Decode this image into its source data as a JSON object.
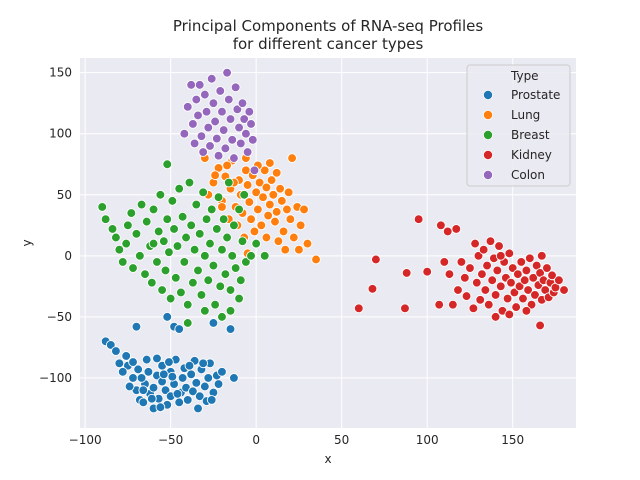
{
  "chart_data": {
    "type": "scatter",
    "title": [
      "Principal Components of RNA-seq Profiles",
      "for different cancer types"
    ],
    "xlabel": "x",
    "ylabel": "y",
    "xlim": [
      -103,
      187
    ],
    "ylim": [
      -141,
      162
    ],
    "xticks": [
      -100,
      -50,
      0,
      50,
      100,
      150
    ],
    "yticks": [
      -100,
      -50,
      0,
      50,
      100,
      150
    ],
    "xtick_labels": [
      "−100",
      "−50",
      "0",
      "50",
      "100",
      "150"
    ],
    "ytick_labels": [
      "−100",
      "−50",
      "0",
      "50",
      "100",
      "150"
    ],
    "grid": true,
    "background": "#eaeaf2",
    "legend": {
      "title": "Type",
      "placement": "top-right"
    },
    "series": [
      {
        "name": "Prostate",
        "color": "#1f77b4",
        "points": [
          [
            -75,
            -90
          ],
          [
            -72,
            -100
          ],
          [
            -70,
            -110
          ],
          [
            -68,
            -118
          ],
          [
            -66,
            -120
          ],
          [
            -65,
            -105
          ],
          [
            -63,
            -95
          ],
          [
            -62,
            -113
          ],
          [
            -60,
            -108
          ],
          [
            -60,
            -125
          ],
          [
            -58,
            -98
          ],
          [
            -57,
            -117
          ],
          [
            -55,
            -103
          ],
          [
            -55,
            -90
          ],
          [
            -53,
            -110
          ],
          [
            -52,
            -122
          ],
          [
            -50,
            -95
          ],
          [
            -50,
            -115
          ],
          [
            -48,
            -105
          ],
          [
            -47,
            -85
          ],
          [
            -45,
            -120
          ],
          [
            -44,
            -112
          ],
          [
            -43,
            -100
          ],
          [
            -42,
            -92
          ],
          [
            -41,
            -108
          ],
          [
            -40,
            -118
          ],
          [
            -38,
            -97
          ],
          [
            -37,
            -111
          ],
          [
            -36,
            -86
          ],
          [
            -35,
            -104
          ],
          [
            -33,
            -115
          ],
          [
            -32,
            -93
          ],
          [
            -30,
            -107
          ],
          [
            -29,
            -119
          ],
          [
            -28,
            -100
          ],
          [
            -27,
            -88
          ],
          [
            -25,
            -112
          ],
          [
            -23,
            -98
          ],
          [
            -22,
            -105
          ],
          [
            -20,
            -95
          ],
          [
            -67,
            -100
          ],
          [
            -64,
            -85
          ],
          [
            -61,
            -117
          ],
          [
            -58,
            -84
          ],
          [
            -56,
            -124
          ],
          [
            -54,
            -97
          ],
          [
            -51,
            -87
          ],
          [
            -49,
            -99
          ],
          [
            -46,
            -113
          ],
          [
            -39,
            -90
          ],
          [
            -34,
            -125
          ],
          [
            -31,
            -88
          ],
          [
            -26,
            -118
          ],
          [
            -70,
            -58
          ],
          [
            -52,
            -50
          ],
          [
            -48,
            -58
          ],
          [
            -45,
            -60
          ],
          [
            -25,
            -55
          ],
          [
            -15,
            -60
          ],
          [
            -13,
            -100
          ],
          [
            -88,
            -70
          ],
          [
            -85,
            -73
          ],
          [
            -82,
            -78
          ],
          [
            -80,
            -88
          ],
          [
            -78,
            -95
          ],
          [
            -76,
            -82
          ],
          [
            -74,
            -107
          ],
          [
            -72,
            -87
          ],
          [
            -69,
            -93
          ],
          [
            -66,
            -110
          ]
        ]
      },
      {
        "name": "Lung",
        "color": "#ff7f0e",
        "points": [
          [
            -30,
            80
          ],
          [
            -25,
            60
          ],
          [
            -22,
            72
          ],
          [
            -20,
            45
          ],
          [
            -18,
            65
          ],
          [
            -15,
            55
          ],
          [
            -14,
            78
          ],
          [
            -12,
            40
          ],
          [
            -10,
            62
          ],
          [
            -9,
            50
          ],
          [
            -8,
            35
          ],
          [
            -6,
            70
          ],
          [
            -5,
            58
          ],
          [
            -4,
            44
          ],
          [
            -3,
            30
          ],
          [
            -2,
            66
          ],
          [
            0,
            52
          ],
          [
            1,
            38
          ],
          [
            2,
            60
          ],
          [
            3,
            25
          ],
          [
            4,
            48
          ],
          [
            5,
            70
          ],
          [
            6,
            56
          ],
          [
            7,
            33
          ],
          [
            8,
            42
          ],
          [
            9,
            62
          ],
          [
            10,
            50
          ],
          [
            11,
            28
          ],
          [
            12,
            36
          ],
          [
            14,
            55
          ],
          [
            15,
            45
          ],
          [
            16,
            20
          ],
          [
            18,
            38
          ],
          [
            19,
            52
          ],
          [
            20,
            30
          ],
          [
            21,
            80
          ],
          [
            22,
            15
          ],
          [
            24,
            40
          ],
          [
            26,
            25
          ],
          [
            28,
            38
          ],
          [
            30,
            10
          ],
          [
            35,
            -3
          ],
          [
            -5,
            2
          ],
          [
            -28,
            50
          ],
          [
            -20,
            40
          ],
          [
            -16,
            30
          ],
          [
            -11,
            25
          ],
          [
            -7,
            15
          ],
          [
            -1,
            20
          ],
          [
            6,
            15
          ],
          [
            13,
            12
          ],
          [
            17,
            5
          ],
          [
            25,
            5
          ],
          [
            -24,
            66
          ],
          [
            -17,
            74
          ],
          [
            -13,
            60
          ],
          [
            -6,
            80
          ],
          [
            1,
            74
          ],
          [
            8,
            76
          ],
          [
            12,
            68
          ]
        ]
      },
      {
        "name": "Breast",
        "color": "#2ca02c",
        "points": [
          [
            -90,
            40
          ],
          [
            -88,
            30
          ],
          [
            -84,
            22
          ],
          [
            -82,
            15
          ],
          [
            -80,
            5
          ],
          [
            -78,
            -5
          ],
          [
            -76,
            10
          ],
          [
            -75,
            25
          ],
          [
            -73,
            35
          ],
          [
            -72,
            -10
          ],
          [
            -70,
            18
          ],
          [
            -68,
            0
          ],
          [
            -67,
            42
          ],
          [
            -65,
            -15
          ],
          [
            -64,
            28
          ],
          [
            -62,
            8
          ],
          [
            -61,
            -22
          ],
          [
            -60,
            38
          ],
          [
            -58,
            -5
          ],
          [
            -57,
            20
          ],
          [
            -56,
            50
          ],
          [
            -55,
            -28
          ],
          [
            -54,
            12
          ],
          [
            -53,
            -12
          ],
          [
            -52,
            30
          ],
          [
            -51,
            3
          ],
          [
            -50,
            -35
          ],
          [
            -49,
            45
          ],
          [
            -48,
            22
          ],
          [
            -47,
            -18
          ],
          [
            -46,
            8
          ],
          [
            -45,
            55
          ],
          [
            -44,
            -30
          ],
          [
            -43,
            32
          ],
          [
            -42,
            -5
          ],
          [
            -41,
            15
          ],
          [
            -40,
            -40
          ],
          [
            -39,
            60
          ],
          [
            -38,
            25
          ],
          [
            -37,
            -22
          ],
          [
            -36,
            5
          ],
          [
            -35,
            42
          ],
          [
            -34,
            -12
          ],
          [
            -33,
            18
          ],
          [
            -32,
            -32
          ],
          [
            -31,
            52
          ],
          [
            -30,
            0
          ],
          [
            -29,
            30
          ],
          [
            -28,
            -20
          ],
          [
            -27,
            10
          ],
          [
            -26,
            38
          ],
          [
            -25,
            -8
          ],
          [
            -24,
            -40
          ],
          [
            -23,
            22
          ],
          [
            -22,
            48
          ],
          [
            -21,
            -25
          ],
          [
            -20,
            5
          ],
          [
            -19,
            30
          ],
          [
            -18,
            -15
          ],
          [
            -17,
            15
          ],
          [
            -16,
            60
          ],
          [
            -15,
            -28
          ],
          [
            -14,
            0
          ],
          [
            -13,
            25
          ],
          [
            -12,
            -10
          ],
          [
            -10,
            38
          ],
          [
            -9,
            -20
          ],
          [
            -8,
            12
          ],
          [
            -7,
            50
          ],
          [
            -6,
            -5
          ],
          [
            -15,
            -45
          ],
          [
            -10,
            -35
          ],
          [
            -3,
            0
          ],
          [
            0,
            10
          ],
          [
            5,
            0
          ],
          [
            -40,
            -55
          ],
          [
            -30,
            -45
          ],
          [
            -20,
            -50
          ],
          [
            -52,
            75
          ],
          [
            -60,
            10
          ]
        ]
      },
      {
        "name": "Kidney",
        "color": "#d62728",
        "points": [
          [
            60,
            -43
          ],
          [
            68,
            -27
          ],
          [
            70,
            -3
          ],
          [
            87,
            -43
          ],
          [
            88,
            -14
          ],
          [
            95,
            30
          ],
          [
            100,
            -13
          ],
          [
            107,
            -40
          ],
          [
            108,
            25
          ],
          [
            110,
            -5
          ],
          [
            112,
            20
          ],
          [
            113,
            -15
          ],
          [
            115,
            -40
          ],
          [
            117,
            22
          ],
          [
            118,
            -28
          ],
          [
            120,
            -5
          ],
          [
            122,
            -18
          ],
          [
            123,
            -33
          ],
          [
            125,
            -10
          ],
          [
            127,
            -43
          ],
          [
            128,
            10
          ],
          [
            129,
            -22
          ],
          [
            130,
            0
          ],
          [
            131,
            -36
          ],
          [
            132,
            -15
          ],
          [
            133,
            5
          ],
          [
            134,
            -28
          ],
          [
            135,
            -8
          ],
          [
            136,
            -40
          ],
          [
            137,
            12
          ],
          [
            138,
            -20
          ],
          [
            139,
            -2
          ],
          [
            140,
            -32
          ],
          [
            141,
            -12
          ],
          [
            142,
            8
          ],
          [
            143,
            -25
          ],
          [
            144,
            -45
          ],
          [
            145,
            -5
          ],
          [
            146,
            -18
          ],
          [
            147,
            -35
          ],
          [
            148,
            2
          ],
          [
            149,
            -22
          ],
          [
            150,
            -10
          ],
          [
            151,
            -30
          ],
          [
            152,
            -42
          ],
          [
            153,
            -15
          ],
          [
            154,
            -25
          ],
          [
            155,
            -5
          ],
          [
            156,
            -35
          ],
          [
            157,
            -20
          ],
          [
            158,
            -12
          ],
          [
            159,
            -28
          ],
          [
            160,
            -2
          ],
          [
            161,
            -40
          ],
          [
            162,
            -18
          ],
          [
            163,
            -32
          ],
          [
            164,
            -8
          ],
          [
            165,
            -24
          ],
          [
            166,
            -14
          ],
          [
            167,
            -36
          ],
          [
            168,
            -20
          ],
          [
            169,
            -28
          ],
          [
            170,
            -10
          ],
          [
            171,
            -34
          ],
          [
            172,
            -22
          ],
          [
            173,
            -16
          ],
          [
            174,
            -30
          ],
          [
            175,
            -26
          ],
          [
            177,
            -20
          ],
          [
            180,
            -28
          ],
          [
            140,
            -50
          ],
          [
            166,
            -57
          ],
          [
            148,
            -48
          ],
          [
            167,
            0
          ],
          [
            143,
            0
          ],
          [
            158,
            -45
          ]
        ]
      },
      {
        "name": "Colon",
        "color": "#9467bd",
        "points": [
          [
            -42,
            100
          ],
          [
            -40,
            122
          ],
          [
            -38,
            140
          ],
          [
            -37,
            108
          ],
          [
            -36,
            92
          ],
          [
            -35,
            128
          ],
          [
            -34,
            115
          ],
          [
            -33,
            140
          ],
          [
            -32,
            98
          ],
          [
            -31,
            85
          ],
          [
            -30,
            132
          ],
          [
            -29,
            118
          ],
          [
            -28,
            105
          ],
          [
            -27,
            90
          ],
          [
            -26,
            145
          ],
          [
            -25,
            125
          ],
          [
            -24,
            110
          ],
          [
            -23,
            96
          ],
          [
            -22,
            82
          ],
          [
            -21,
            135
          ],
          [
            -20,
            118
          ],
          [
            -19,
            103
          ],
          [
            -18,
            88
          ],
          [
            -17,
            150
          ],
          [
            -16,
            128
          ],
          [
            -15,
            112
          ],
          [
            -14,
            95
          ],
          [
            -13,
            80
          ],
          [
            -12,
            138
          ],
          [
            -11,
            120
          ],
          [
            -10,
            105
          ],
          [
            -9,
            92
          ],
          [
            -8,
            125
          ],
          [
            -7,
            112
          ],
          [
            -6,
            100
          ],
          [
            -5,
            85
          ],
          [
            -4,
            118
          ],
          [
            -3,
            108
          ],
          [
            -2,
            95
          ],
          [
            -1,
            70
          ]
        ]
      }
    ]
  }
}
